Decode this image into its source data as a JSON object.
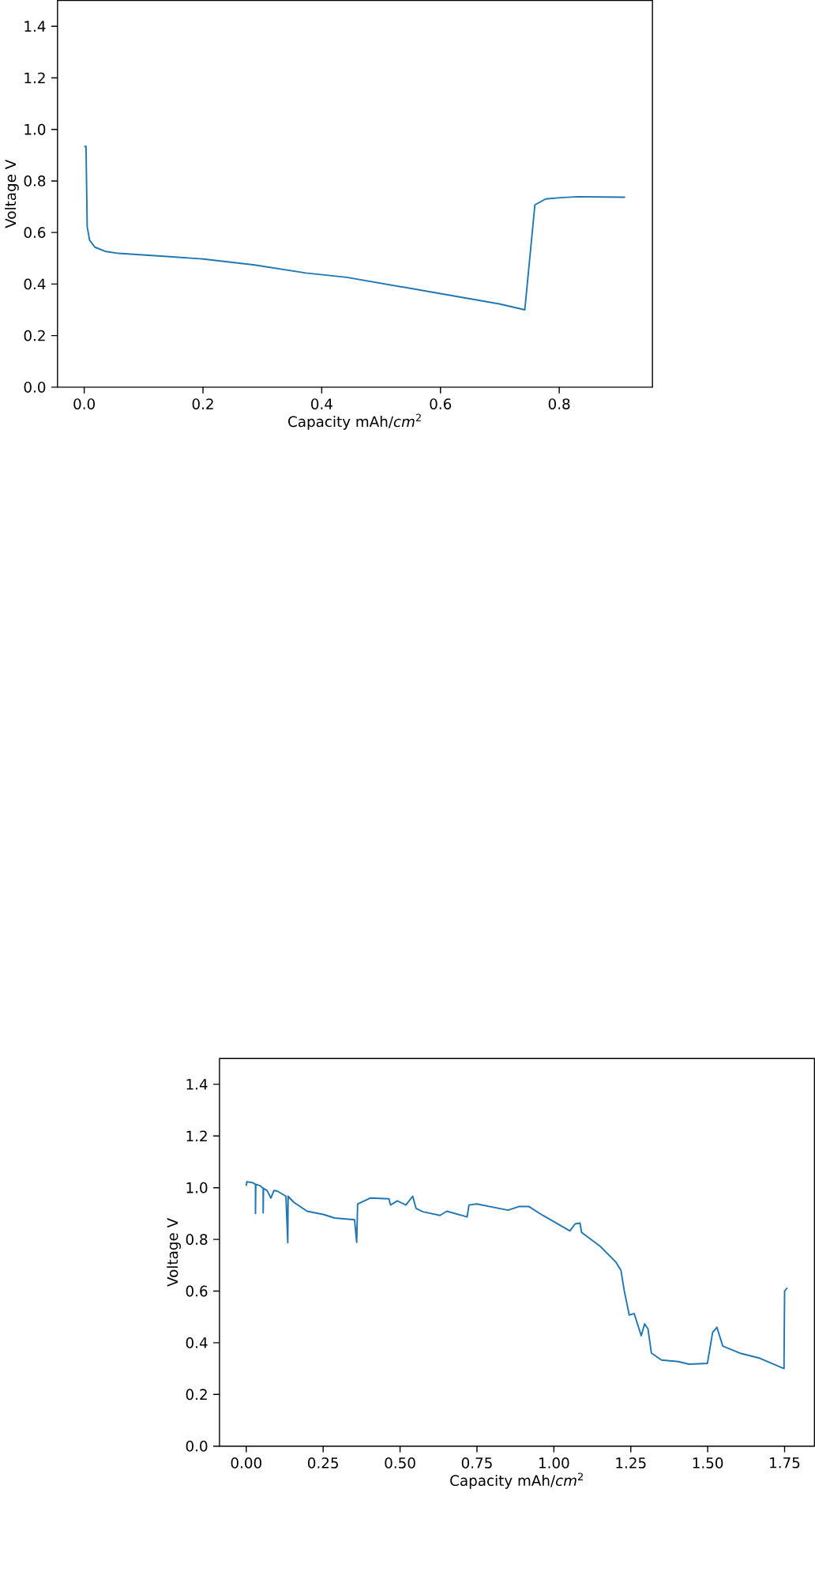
{
  "chart_data": [
    {
      "type": "line",
      "xlabel": "Capacity mAh/*cm*$^{2}$",
      "ylabel": "Voltage V",
      "xlim": [
        -0.045,
        0.957
      ],
      "ylim": [
        0,
        1.5
      ],
      "xticks": [
        {
          "value": 0,
          "label": "0.0"
        },
        {
          "value": 0.2,
          "label": "0.2"
        },
        {
          "value": 0.4,
          "label": "0.4"
        },
        {
          "value": 0.6,
          "label": "0.6"
        },
        {
          "value": 0.8,
          "label": "0.8"
        }
      ],
      "yticks": [
        {
          "value": 0,
          "label": "0.0"
        },
        {
          "value": 0.2,
          "label": "0.2"
        },
        {
          "value": 0.4,
          "label": "0.4"
        },
        {
          "value": 0.6,
          "label": "0.6"
        },
        {
          "value": 0.8,
          "label": "0.8"
        },
        {
          "value": 1.0,
          "label": "1.0"
        },
        {
          "value": 1.2,
          "label": "1.2"
        },
        {
          "value": 1.4,
          "label": "1.4"
        }
      ],
      "x": [
        0,
        0.003,
        0.005,
        0.009,
        0.018,
        0.035,
        0.058,
        0.144,
        0.201,
        0.287,
        0.373,
        0.442,
        0.6,
        0.699,
        0.742,
        0.759,
        0.777,
        0.802,
        0.831,
        0.911
      ],
      "series": [
        {
          "color": "#1f77b4",
          "values": [
            0.934,
            0.934,
            0.623,
            0.57,
            0.543,
            0.527,
            0.519,
            0.506,
            0.497,
            0.474,
            0.443,
            0.426,
            0.363,
            0.323,
            0.3,
            0.707,
            0.73,
            0.735,
            0.739,
            0.737
          ]
        }
      ]
    },
    {
      "type": "line",
      "xlabel": "Capacity mAh/*cm*$^{2}$",
      "ylabel": "Voltage V",
      "xlim": [
        -0.087,
        1.847
      ],
      "ylim": [
        0,
        1.5
      ],
      "xticks": [
        {
          "value": 0,
          "label": "0.00"
        },
        {
          "value": 0.25,
          "label": "0.25"
        },
        {
          "value": 0.5,
          "label": "0.50"
        },
        {
          "value": 0.75,
          "label": "0.75"
        },
        {
          "value": 1.0,
          "label": "1.00"
        },
        {
          "value": 1.25,
          "label": "1.25"
        },
        {
          "value": 1.5,
          "label": "1.50"
        },
        {
          "value": 1.75,
          "label": "1.75"
        }
      ],
      "yticks": [
        {
          "value": 0,
          "label": "0.0"
        },
        {
          "value": 0.2,
          "label": "0.2"
        },
        {
          "value": 0.4,
          "label": "0.4"
        },
        {
          "value": 0.6,
          "label": "0.6"
        },
        {
          "value": 0.8,
          "label": "0.8"
        },
        {
          "value": 1.0,
          "label": "1.0"
        },
        {
          "value": 1.2,
          "label": "1.2"
        },
        {
          "value": 1.4,
          "label": "1.4"
        }
      ],
      "x": [
        0,
        0.002,
        0.019,
        0.03,
        0.03,
        0.031,
        0.046,
        0.055,
        0.055,
        0.056,
        0.068,
        0.08,
        0.09,
        0.101,
        0.129,
        0.135,
        0.136,
        0.154,
        0.198,
        0.253,
        0.286,
        0.352,
        0.359,
        0.362,
        0.403,
        0.464,
        0.469,
        0.491,
        0.519,
        0.541,
        0.552,
        0.574,
        0.63,
        0.652,
        0.718,
        0.724,
        0.749,
        0.851,
        0.886,
        0.919,
        0.964,
        1.052,
        1.069,
        1.085,
        1.09,
        1.151,
        1.201,
        1.218,
        1.229,
        1.245,
        1.261,
        1.284,
        1.295,
        1.306,
        1.317,
        1.35,
        1.405,
        1.439,
        1.499,
        1.516,
        1.53,
        1.549,
        1.604,
        1.67,
        1.748,
        1.75,
        1.759
      ],
      "series": [
        {
          "color": "#1f77b4",
          "values": [
            1.007,
            1.023,
            1.02,
            1.013,
            0.9,
            1.013,
            1.007,
            0.997,
            0.903,
            0.997,
            0.989,
            0.96,
            0.989,
            0.987,
            0.967,
            0.787,
            0.967,
            0.944,
            0.909,
            0.896,
            0.883,
            0.876,
            0.789,
            0.937,
            0.96,
            0.957,
            0.933,
            0.949,
            0.933,
            0.967,
            0.92,
            0.907,
            0.893,
            0.909,
            0.887,
            0.933,
            0.937,
            0.913,
            0.927,
            0.927,
            0.893,
            0.833,
            0.86,
            0.863,
            0.827,
            0.773,
            0.713,
            0.68,
            0.6,
            0.507,
            0.513,
            0.427,
            0.473,
            0.453,
            0.36,
            0.333,
            0.327,
            0.317,
            0.32,
            0.44,
            0.46,
            0.387,
            0.36,
            0.34,
            0.3,
            0.6,
            0.613
          ]
        }
      ]
    }
  ]
}
